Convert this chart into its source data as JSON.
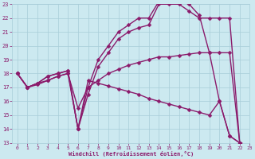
{
  "xlabel": "Windchill (Refroidissement éolien,°C)",
  "xlim": [
    -0.5,
    23
  ],
  "ylim": [
    13,
    23
  ],
  "xticks": [
    0,
    1,
    2,
    3,
    4,
    5,
    6,
    7,
    8,
    9,
    10,
    11,
    12,
    13,
    14,
    15,
    16,
    17,
    18,
    19,
    20,
    21,
    22,
    23
  ],
  "yticks": [
    13,
    14,
    15,
    16,
    17,
    18,
    19,
    20,
    21,
    22,
    23
  ],
  "bg_color": "#cce9f0",
  "grid_color": "#a8cdd8",
  "line_color": "#8b1a6b",
  "line_width": 1.0,
  "marker": "D",
  "marker_size": 2.5,
  "lines": [
    {
      "x": [
        0,
        1,
        2,
        3,
        4,
        5,
        6,
        7,
        8,
        9,
        10,
        11,
        12,
        13,
        14,
        15,
        16,
        17,
        18,
        19,
        20,
        21,
        22,
        23
      ],
      "y": [
        18,
        17,
        17.2,
        17.5,
        17.8,
        18,
        14,
        17.5,
        17.3,
        17.1,
        16.9,
        16.7,
        16.5,
        16.2,
        16.0,
        15.8,
        15.6,
        15.4,
        15.2,
        15.0,
        16,
        13.5,
        13,
        12.8
      ]
    },
    {
      "x": [
        0,
        1,
        2,
        3,
        4,
        5,
        6,
        7,
        8,
        9,
        10,
        11,
        12,
        13,
        14,
        15,
        16,
        17,
        18,
        19,
        20,
        21,
        22,
        23
      ],
      "y": [
        18,
        17,
        17.3,
        17.5,
        17.8,
        18,
        15.5,
        17,
        17.5,
        18,
        18.3,
        18.6,
        18.8,
        19,
        19.2,
        19.2,
        19.3,
        19.4,
        19.5,
        19.5,
        16,
        13.5,
        13,
        12.8
      ]
    },
    {
      "x": [
        0,
        1,
        2,
        3,
        4,
        5,
        6,
        7,
        8,
        9,
        10,
        11,
        12,
        13,
        14,
        15,
        16,
        17,
        18,
        19,
        20,
        21,
        22,
        23
      ],
      "y": [
        18,
        17,
        17.3,
        17.8,
        18,
        18.2,
        14,
        16.5,
        18.5,
        19.5,
        20.5,
        21,
        21.3,
        21.5,
        23,
        23,
        23,
        22.5,
        22,
        22,
        22,
        22,
        13,
        12.8
      ]
    },
    {
      "x": [
        0,
        1,
        2,
        3,
        4,
        5,
        6,
        7,
        8,
        9,
        10,
        11,
        12,
        13,
        14,
        15,
        16,
        17,
        18,
        19,
        20,
        21,
        22,
        23
      ],
      "y": [
        18,
        17,
        17.3,
        17.8,
        18,
        18.2,
        14,
        17,
        19,
        20,
        21,
        21.5,
        22,
        22,
        23.2,
        23.2,
        23.2,
        23,
        22.2,
        19.5,
        19.5,
        19.5,
        13,
        12.8
      ]
    }
  ]
}
